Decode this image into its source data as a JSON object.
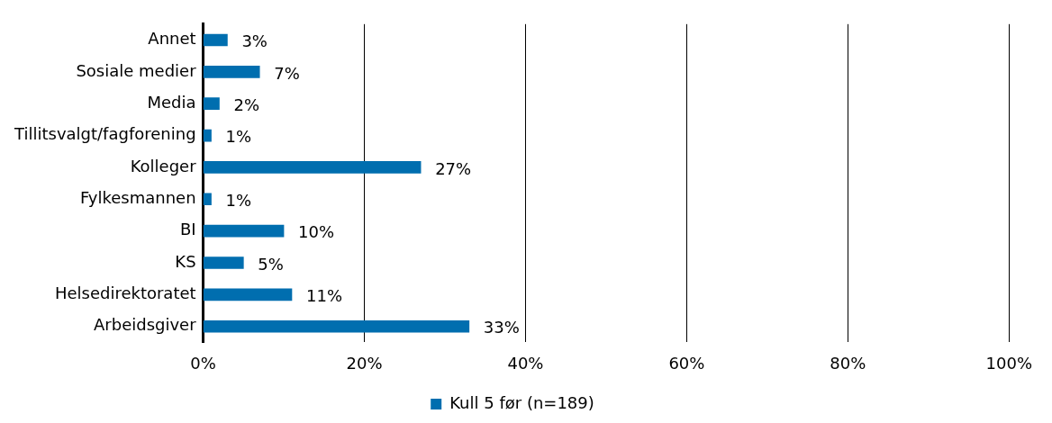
{
  "chart_data": {
    "type": "bar",
    "orientation": "horizontal",
    "categories": [
      "Annet",
      "Sosiale medier",
      "Media",
      "Tillitsvalgt/fagforening",
      "Kolleger",
      "Fylkesmannen",
      "BI",
      "KS",
      "Helsedirektoratet",
      "Arbeidsgiver"
    ],
    "series": [
      {
        "name": "Kull 5 før (n=189)",
        "color": "#006eaf",
        "values": [
          3,
          7,
          2,
          1,
          27,
          1,
          10,
          5,
          11,
          33
        ],
        "value_labels": [
          "3%",
          "7%",
          "2%",
          "1%",
          "27%",
          "1%",
          "10%",
          "5%",
          "11%",
          "33%"
        ]
      }
    ],
    "xlim": [
      0,
      100
    ],
    "xticks": [
      {
        "value": 0,
        "label": "0%"
      },
      {
        "value": 20,
        "label": "20%"
      },
      {
        "value": 40,
        "label": "40%"
      },
      {
        "value": 60,
        "label": "60%"
      },
      {
        "value": 80,
        "label": "80%"
      },
      {
        "value": 100,
        "label": "100%"
      }
    ],
    "grid": "x",
    "legend": "bottom"
  }
}
